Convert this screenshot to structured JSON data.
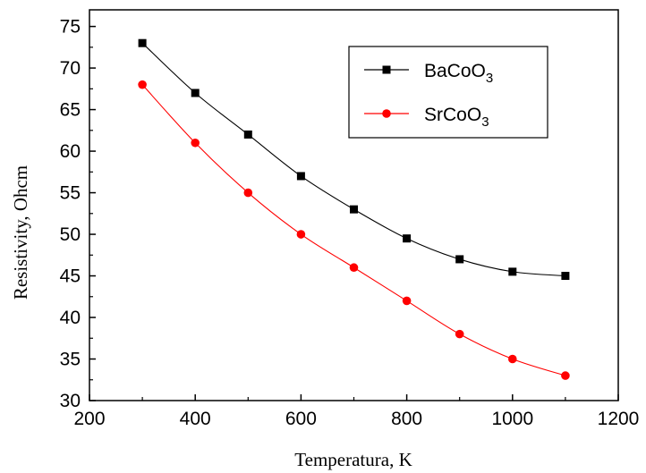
{
  "chart_data": {
    "type": "line",
    "xlabel": "Temperatura, K",
    "ylabel": "Resistivity, Ohcm",
    "xlim": [
      200,
      1200
    ],
    "ylim": [
      30,
      77
    ],
    "xticks": [
      200,
      400,
      600,
      800,
      1000,
      1200
    ],
    "yticks": [
      30,
      35,
      40,
      45,
      50,
      55,
      60,
      65,
      70,
      75
    ],
    "grid": false,
    "legend_position": "top-right",
    "x": [
      300,
      400,
      500,
      600,
      700,
      800,
      900,
      1000,
      1100
    ],
    "series": [
      {
        "name": "BaCoO",
        "subscript": "3",
        "color": "#000000",
        "marker": "square",
        "values": [
          73,
          67,
          62,
          57,
          53,
          49.5,
          47,
          45.5,
          45
        ]
      },
      {
        "name": "SrCoO",
        "subscript": "3",
        "color": "#ff0000",
        "marker": "circle",
        "values": [
          68,
          61,
          55,
          50,
          46,
          42,
          38,
          35,
          33
        ]
      }
    ]
  }
}
